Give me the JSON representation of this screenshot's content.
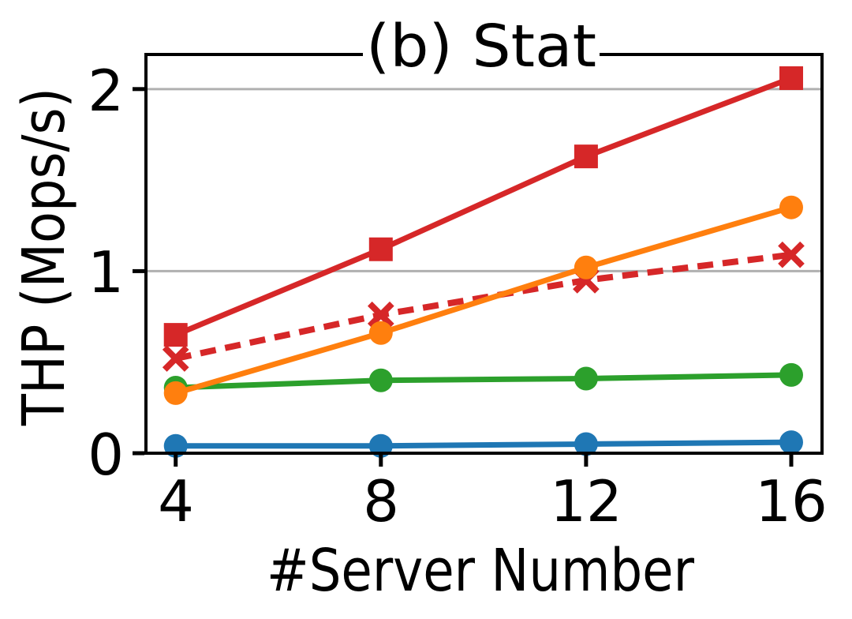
{
  "chart_data": {
    "type": "line",
    "title": "(b) Stat",
    "xlabel": "#Server Number",
    "ylabel": "THP (Mops/s)",
    "x": [
      4,
      8,
      12,
      16
    ],
    "x_tick_labels": [
      "4",
      "8",
      "12",
      "16"
    ],
    "y_ticks": [
      0,
      1,
      2
    ],
    "y_tick_labels": [
      "0",
      "1",
      "2"
    ],
    "xlim": [
      3.42,
      16.6
    ],
    "ylim": [
      0,
      2.19
    ],
    "grid": "horizontal",
    "grid_color": "#b0b0b0",
    "axis_color": "#000000",
    "background_color": "#ffffff",
    "legend": "none",
    "series": [
      {
        "id": "blue-circles",
        "color": "#1f77b4",
        "marker": "circle",
        "line_style": "solid",
        "values": [
          0.04,
          0.04,
          0.05,
          0.06
        ]
      },
      {
        "id": "green-circles",
        "color": "#2ca02c",
        "marker": "circle",
        "line_style": "solid",
        "values": [
          0.36,
          0.4,
          0.41,
          0.43
        ]
      },
      {
        "id": "red-x-dashed",
        "color": "#d62728",
        "marker": "x",
        "line_style": "dashed",
        "values": [
          0.52,
          0.76,
          0.95,
          1.09
        ]
      },
      {
        "id": "orange-circles",
        "color": "#ff7f0e",
        "marker": "circle",
        "line_style": "solid",
        "values": [
          0.33,
          0.66,
          1.02,
          1.35
        ]
      },
      {
        "id": "red-squares",
        "color": "#d62728",
        "marker": "square",
        "line_style": "solid",
        "values": [
          0.65,
          1.12,
          1.63,
          2.06
        ]
      }
    ]
  }
}
